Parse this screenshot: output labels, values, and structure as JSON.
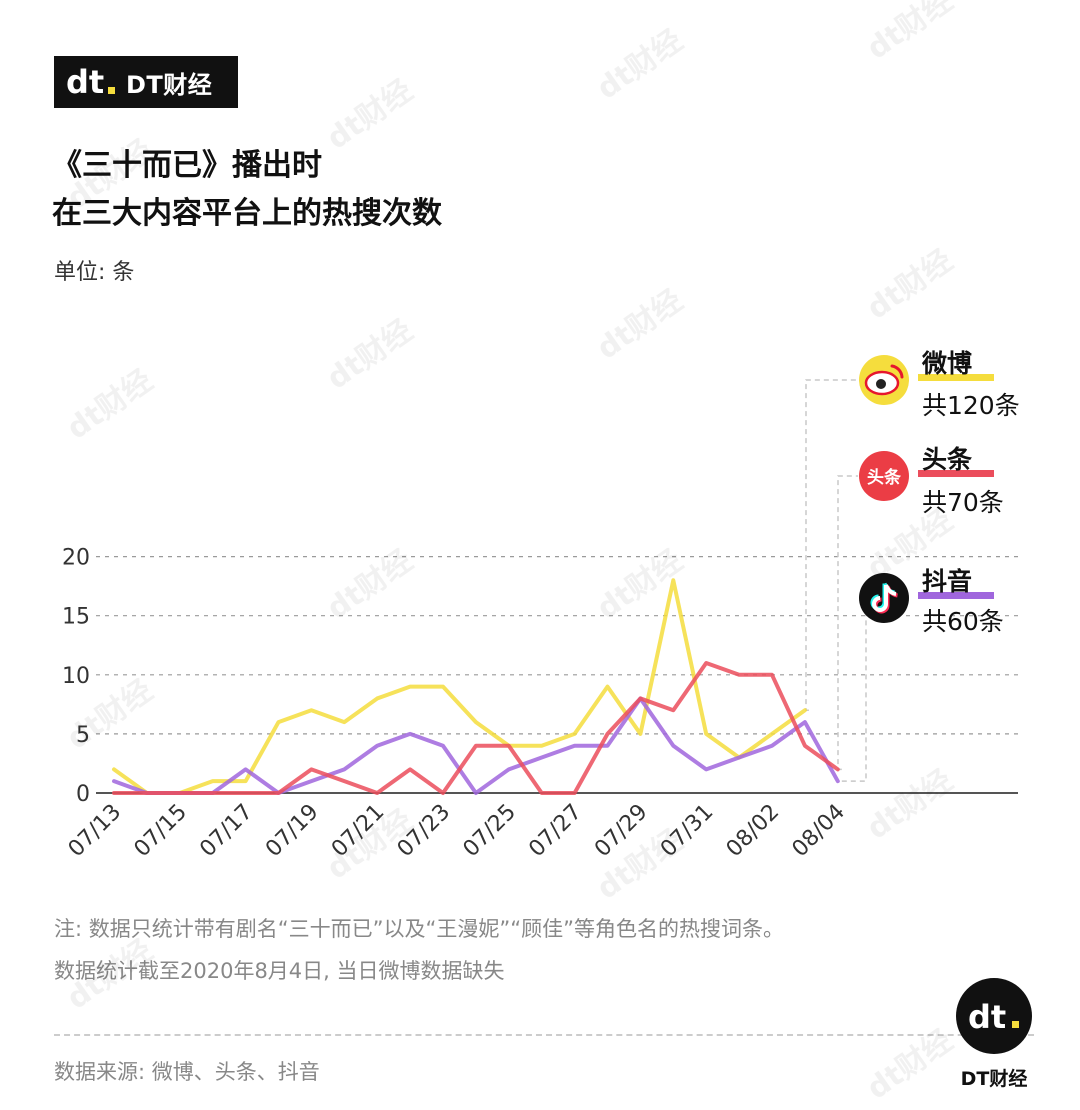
{
  "brand": {
    "name": "DT财经",
    "logo_text": "dt"
  },
  "title_lines": [
    "《三十而已》播出时",
    "在三大内容平台上的热搜次数"
  ],
  "unit_label": "单位: 条",
  "colors": {
    "weibo": "#f5dd3d",
    "toutiao": "#eb4d5c",
    "douyin": "#a066dd",
    "grid": "#9a9a9a",
    "leader": "#c8c8c8"
  },
  "chart_data": {
    "type": "line",
    "y_ticks": [
      0,
      5,
      10,
      15,
      20
    ],
    "ylim": [
      0,
      20
    ],
    "x_tick_labels": [
      "07/13",
      "07/15",
      "07/17",
      "07/19",
      "07/21",
      "07/23",
      "07/25",
      "07/27",
      "07/29",
      "07/31",
      "08/02",
      "08/04"
    ],
    "x": [
      "07/13",
      "07/14",
      "07/15",
      "07/16",
      "07/17",
      "07/18",
      "07/19",
      "07/20",
      "07/21",
      "07/22",
      "07/23",
      "07/24",
      "07/25",
      "07/26",
      "07/27",
      "07/28",
      "07/29",
      "07/30",
      "07/31",
      "08/01",
      "08/02",
      "08/03",
      "08/04"
    ],
    "series": [
      {
        "key": "weibo",
        "name": "微博",
        "total_label": "共120条",
        "icon": "weibo-icon",
        "values": [
          2,
          0,
          0,
          1,
          1,
          6,
          7,
          6,
          8,
          9,
          9,
          6,
          4,
          4,
          5,
          9,
          5,
          18,
          5,
          3,
          5,
          7,
          null
        ]
      },
      {
        "key": "toutiao",
        "name": "头条",
        "total_label": "共70条",
        "icon": "toutiao-icon",
        "icon_text": "头条",
        "values": [
          0,
          0,
          0,
          0,
          0,
          0,
          2,
          1,
          0,
          2,
          0,
          4,
          4,
          0,
          0,
          5,
          8,
          7,
          11,
          10,
          10,
          4,
          2
        ]
      },
      {
        "key": "douyin",
        "name": "抖音",
        "total_label": "共60条",
        "icon": "douyin-icon",
        "values": [
          1,
          0,
          0,
          0,
          2,
          0,
          1,
          2,
          4,
          5,
          4,
          0,
          2,
          3,
          4,
          4,
          8,
          4,
          2,
          3,
          4,
          6,
          1
        ]
      }
    ]
  },
  "note_lines": [
    "注: 数据只统计带有剧名“三十而已”以及“王漫妮”“顾佳”等角色名的热搜词条。",
    "数据统计截至2020年8月4日, 当日微博数据缺失"
  ],
  "source": "数据来源: 微博、头条、抖音",
  "watermark_text": "dt财经"
}
